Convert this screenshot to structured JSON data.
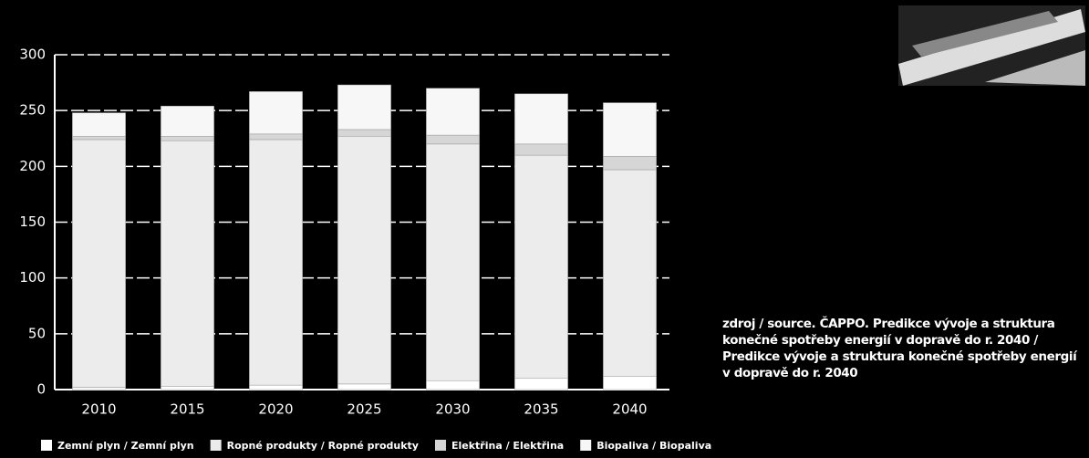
{
  "chart_data": {
    "type": "stacked_bar",
    "categories": [
      "2010",
      "2015",
      "2020",
      "2025",
      "2030",
      "2035",
      "2040"
    ],
    "series": [
      {
        "name": "Zemní plyn / Zemní plyn",
        "color": "#ffffff",
        "values": [
          2,
          3,
          4,
          5,
          8,
          10,
          12
        ]
      },
      {
        "name": "Ropné produkty / Ropné produkty",
        "color": "#ececec",
        "values": [
          222,
          220,
          220,
          222,
          212,
          200,
          185
        ]
      },
      {
        "name": "Elektřina / Elektřina",
        "color": "#d6d6d6",
        "values": [
          3,
          4,
          5,
          6,
          8,
          10,
          12
        ]
      },
      {
        "name": "Biopaliva / Biopaliva",
        "color": "#f7f7f7",
        "values": [
          21,
          27,
          38,
          40,
          42,
          45,
          48
        ]
      }
    ],
    "ylim": [
      0,
      300
    ],
    "yticks": [
      0,
      50,
      100,
      150,
      200,
      250,
      300
    ],
    "grid": true,
    "source": "zdroj / source. ČAPPO. Predikce vývoje a struktura konečné spotřeby energií v dopravě do r. 2040 / Predikce vývoje a struktura konečné spotřeby energií v dopravě do r. 2040"
  }
}
